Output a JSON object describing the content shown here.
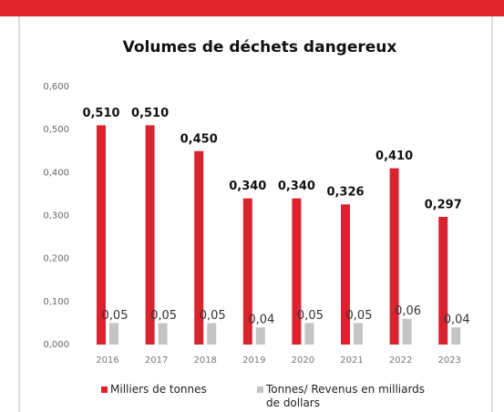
{
  "chart_data": {
    "type": "bar",
    "title": "Volumes de déchets dangereux",
    "categories": [
      "2016",
      "2017",
      "2018",
      "2019",
      "2020",
      "2021",
      "2022",
      "2023"
    ],
    "series": [
      {
        "name": "Milliers de tonnes",
        "color": "#d9232e",
        "values": [
          0.51,
          0.51,
          0.45,
          0.34,
          0.34,
          0.326,
          0.41,
          0.297
        ],
        "value_labels": [
          "0,510",
          "0,510",
          "0,450",
          "0,340",
          "0,340",
          "0,326",
          "0,410",
          "0,297"
        ]
      },
      {
        "name": "Tonnes/ Revenus en milliards de dollars",
        "color": "#c4c4c4",
        "values": [
          0.05,
          0.05,
          0.05,
          0.04,
          0.05,
          0.05,
          0.06,
          0.04
        ],
        "value_labels": [
          "0,05",
          "0,05",
          "0,05",
          "0,04",
          "0,05",
          "0,05",
          "0,06",
          "0,04"
        ]
      }
    ],
    "ylim": [
      0,
      0.6
    ],
    "yticks": [
      {
        "value": 0,
        "label": "0,000"
      },
      {
        "value": 0.1,
        "label": "0,100"
      },
      {
        "value": 0.2,
        "label": "0,200"
      },
      {
        "value": 0.3,
        "label": "0,300"
      },
      {
        "value": 0.4,
        "label": "0,400"
      },
      {
        "value": 0.5,
        "label": "0,500"
      },
      {
        "value": 0.6,
        "label": "0,600"
      }
    ]
  }
}
